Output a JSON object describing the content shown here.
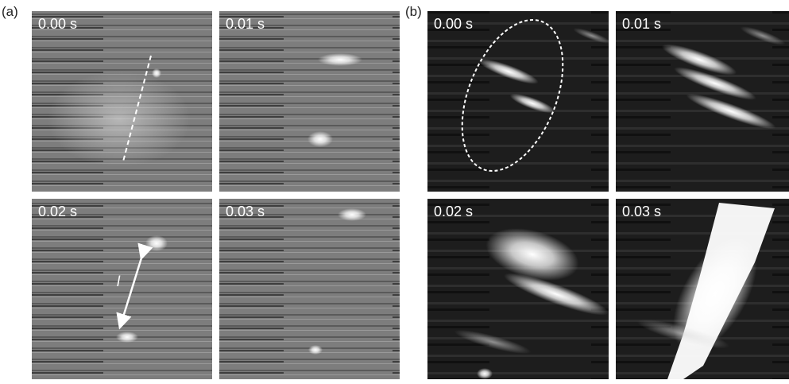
{
  "panels": [
    {
      "label": "(a)",
      "frames": [
        {
          "time": "0.00 s"
        },
        {
          "time": "0.01 s"
        },
        {
          "time": "0.02 s"
        },
        {
          "time": "0.03 s"
        }
      ],
      "annotation": "l"
    },
    {
      "label": "(b)",
      "frames": [
        {
          "time": "0.00 s"
        },
        {
          "time": "0.01 s"
        },
        {
          "time": "0.02 s"
        },
        {
          "time": "0.03 s"
        }
      ]
    }
  ]
}
